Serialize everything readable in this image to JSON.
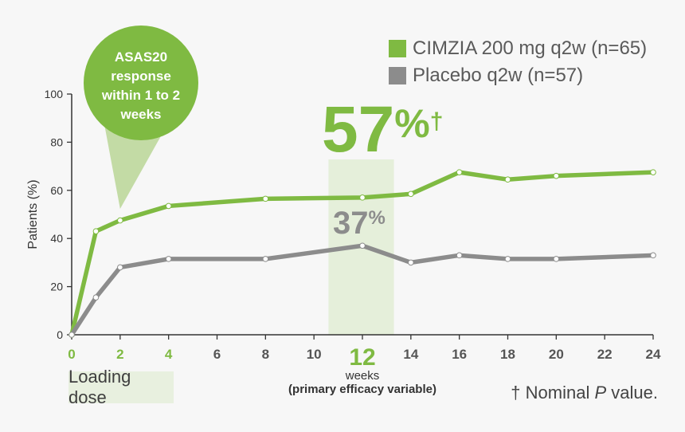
{
  "chart_data": {
    "type": "line",
    "ylabel": "Patients (%)",
    "ylim": [
      0,
      100
    ],
    "yticks": [
      0,
      20,
      40,
      60,
      80,
      100
    ],
    "xlim": [
      0,
      24
    ],
    "xticks": [
      0,
      2,
      4,
      6,
      8,
      10,
      12,
      14,
      16,
      18,
      20,
      22,
      24
    ],
    "xticks_highlighted": [
      0,
      2,
      4
    ],
    "xtick_emphasis": 12,
    "xlabel_line1": "weeks",
    "xlabel_line2": "(primary efficacy variable)",
    "series": [
      {
        "name": "CIMZIA 200 mg q2w (n=65)",
        "color": "#7fba42",
        "x": [
          0,
          1,
          2,
          4,
          8,
          12,
          14,
          16,
          18,
          20,
          24
        ],
        "values": [
          0,
          43,
          47.5,
          53.5,
          56.5,
          57,
          58.5,
          67.5,
          64.5,
          66,
          67.5
        ]
      },
      {
        "name": "Placebo q2w (n=57)",
        "color": "#8c8c8c",
        "x": [
          0,
          1,
          2,
          4,
          8,
          12,
          14,
          16,
          18,
          20,
          24
        ],
        "values": [
          0,
          15.5,
          28,
          31.5,
          31.5,
          37,
          30,
          33,
          31.5,
          31.5,
          33
        ]
      }
    ],
    "annotations": {
      "cimzia_big_value": "57",
      "cimzia_big_percent": "%",
      "cimzia_big_dagger": "†",
      "placebo_value": "37",
      "placebo_percent": "%",
      "callout_lines": [
        "ASAS20",
        "response",
        "within 1 to 2",
        "weeks"
      ],
      "callout_point_x": 2
    },
    "highlight_band": [
      10.6,
      13.3
    ]
  },
  "legend": [
    {
      "label": "CIMZIA 200 mg q2w (n=65)",
      "color": "#7fba42"
    },
    {
      "label": "Placebo q2w (n=57)",
      "color": "#8c8c8c"
    }
  ],
  "loading_dose_label": "Loading dose",
  "footnote": {
    "dagger": "†",
    "text_before": "Nominal ",
    "italic": "P",
    "text_after": " value."
  }
}
